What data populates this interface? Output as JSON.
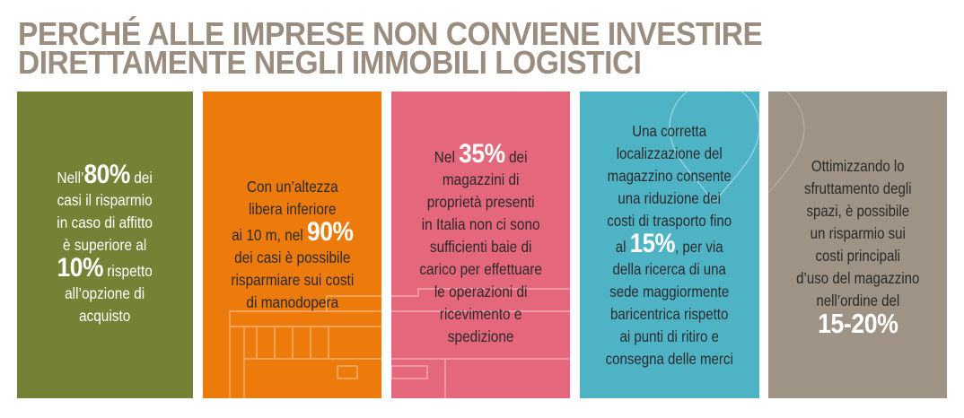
{
  "title": {
    "line1": "PERCHÉ ALLE IMPRESE NON CONVIENE INVESTIRE",
    "line2": "DIRETTAMENTE NEGLI IMMOBILI LOGISTICI"
  },
  "colors": {
    "title": "#9a8d80",
    "panel1": "#738234",
    "panel2": "#ed7b0c",
    "panel3": "#e5677b",
    "panel4": "#4fb3c6",
    "panel5": "#9e9385"
  },
  "panels": [
    {
      "id": "affitto",
      "l1a": "Nell’",
      "l1big": "80%",
      "l1b": " dei",
      "l2": "casi il risparmio",
      "l3": "in caso di affitto",
      "l4": "è superiore al",
      "l5big": "10%",
      "l5b": " rispetto",
      "l6": "all’opzione di",
      "l7": "acquisto"
    },
    {
      "id": "altezza",
      "l1": "Con un’altezza",
      "l2": "libera inferiore",
      "l3a": "ai 10 m, nel ",
      "l3big": "90%",
      "l4": "dei casi è possibile",
      "l5": "risparmiare sui costi",
      "l6": "di manodopera"
    },
    {
      "id": "baie",
      "l1a": "Nel ",
      "l1big": "35%",
      "l1b": " dei",
      "l2": "magazzini di",
      "l3": "proprietà presenti",
      "l4": "in Italia non ci sono",
      "l5": "sufficienti baie di",
      "l6": "carico per effettuare",
      "l7": "le operazioni di",
      "l8": "ricevimento e",
      "l9": "spedizione"
    },
    {
      "id": "localizzazione",
      "l1": "Una corretta",
      "l2": "localizzazione del",
      "l3": "magazzino consente",
      "l4": "una riduzione dei",
      "l5": "costi di trasporto fino",
      "l6a": "al ",
      "l6big": "15%",
      "l6b": ", per via",
      "l7": "della ricerca di una",
      "l8": "sede maggiormente",
      "l9": "baricentrica rispetto",
      "l10": "ai punti di ritiro e",
      "l11": "consegna delle merci"
    },
    {
      "id": "spazi",
      "l1": "Ottimizzando lo",
      "l2": "sfruttamento degli",
      "l3": "spazi, è possibile",
      "l4": "un risparmio sui",
      "l5": "costi principali",
      "l6": "d’uso del magazzino",
      "l7": "nell’ordine del",
      "l8big": "15-20%"
    }
  ],
  "icons": {
    "building": "warehouse-outline-icon",
    "pin": "map-pin-outline-icon"
  }
}
